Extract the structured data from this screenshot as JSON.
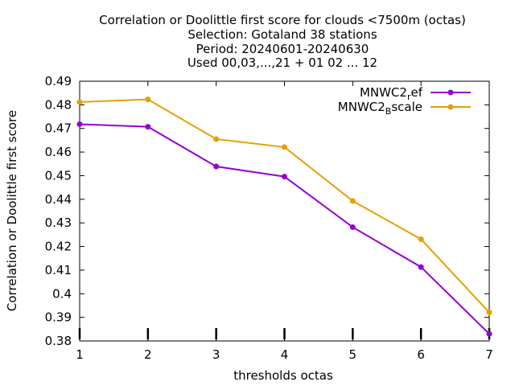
{
  "chart_data": {
    "type": "line",
    "title_lines": [
      "Correlation or Doolittle first score  for clouds <7500m (octas)",
      "Selection: Gotaland     38 stations",
      "Period: 20240601-20240630",
      "Used 00,03,...,21 + 01 02 ... 12"
    ],
    "xlabel": "thresholds octas",
    "ylabel": "Correlation or Doolittle first score",
    "xlim": [
      1,
      7
    ],
    "ylim": [
      0.38,
      0.49
    ],
    "x_ticks": [
      "1",
      "2",
      "3",
      "4",
      "5",
      "6",
      "7"
    ],
    "y_ticks": [
      "0.38",
      "0.39",
      "0.4",
      "0.41",
      "0.42",
      "0.43",
      "0.44",
      "0.45",
      "0.46",
      "0.47",
      "0.48",
      "0.49"
    ],
    "grid": false,
    "legend_position": "top-right",
    "x": [
      1,
      2,
      3,
      4,
      5,
      6,
      7
    ],
    "series": [
      {
        "name": "MNWC2_ref",
        "legend_main": "MNWC2",
        "legend_sub": "r",
        "legend_tail": "ef",
        "color": "#9400d3",
        "values": [
          0.4718,
          0.4707,
          0.4539,
          0.4496,
          0.4282,
          0.4113,
          0.383
        ]
      },
      {
        "name": "MNWC2_Bscale",
        "legend_main": "MNWC2",
        "legend_sub": "B",
        "legend_tail": "scale",
        "color": "#e69f00",
        "values": [
          0.4812,
          0.4823,
          0.4655,
          0.4621,
          0.4393,
          0.4231,
          0.3921
        ]
      }
    ]
  }
}
